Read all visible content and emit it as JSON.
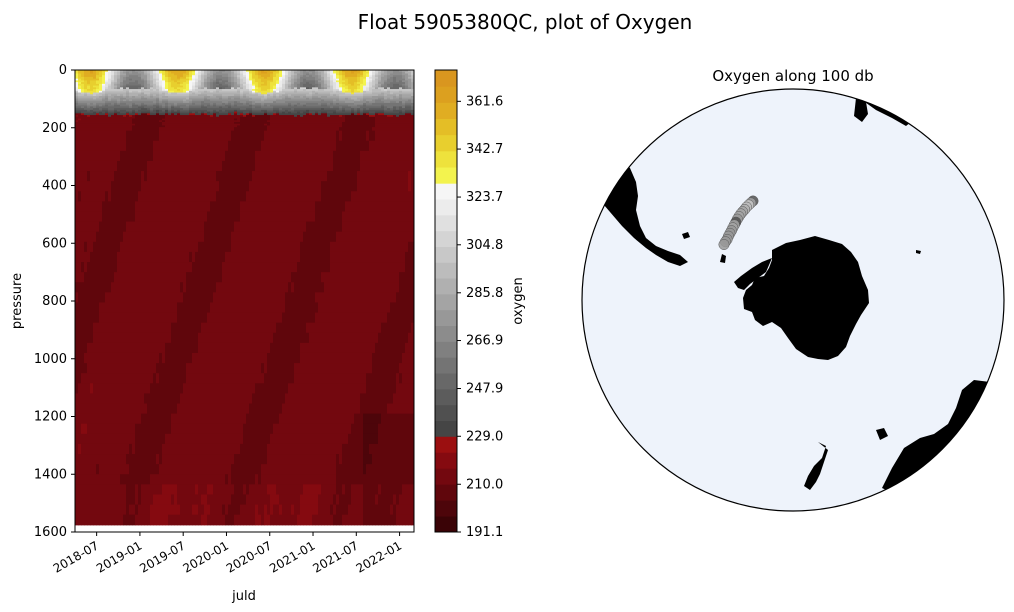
{
  "figure": {
    "suptitle": "Float 5905380QC, plot of Oxygen"
  },
  "chart_data": [
    {
      "type": "heatmap",
      "subtype": "filled-contour section",
      "title": "",
      "xlabel": "juld",
      "ylabel": "pressure",
      "x_ticks": [
        "2018-07",
        "2019-01",
        "2019-07",
        "2020-01",
        "2020-07",
        "2021-01",
        "2021-07",
        "2022-01"
      ],
      "x_range": [
        "2018-04",
        "2022-03"
      ],
      "y_ticks": [
        0,
        200,
        400,
        600,
        800,
        1000,
        1200,
        1400,
        1600
      ],
      "ylim": [
        1600,
        0
      ],
      "y_inverted": true,
      "description_of_field": {
        "surface_high_oxygen_depth_range": [
          0,
          60
        ],
        "transition_layer_depth_range": [
          60,
          150
        ],
        "deep_layer_depth_range": [
          150,
          1600
        ]
      },
      "colorbar": {
        "label": "oxygen",
        "ticks": [
          191.1,
          210.0,
          229.0,
          247.9,
          266.9,
          285.8,
          304.8,
          323.7,
          342.7,
          361.6
        ],
        "range": [
          191.1,
          374.0
        ],
        "colormap": [
          {
            "from": 191.1,
            "to": 229.0,
            "colors": [
              "#3a0306",
              "#4d050a",
              "#60060c",
              "#73080f",
              "#850a10",
              "#9b0f10"
            ]
          },
          {
            "from": 229.0,
            "to": 329.2,
            "colors": [
              "#454545",
              "#505050",
              "#5c5c5c",
              "#686868",
              "#747474",
              "#808080",
              "#8c8c8c",
              "#989898",
              "#a4a4a4",
              "#b0b0b0",
              "#bcbcbc",
              "#c8c8c8",
              "#d4d4d4",
              "#e0e0e0",
              "#ececec",
              "#f6f6f6"
            ]
          },
          {
            "from": 329.2,
            "to": 374.0,
            "colors": [
              "#f3f34e",
              "#eee23c",
              "#e8cf2e",
              "#e4be26",
              "#e0ad22",
              "#dca01f",
              "#d9961f"
            ]
          }
        ]
      }
    },
    {
      "type": "scatter",
      "subtype": "south-polar map",
      "title": "Oxygen along 100 db",
      "ocean_color": "#eef3fb",
      "land_color": "#000000",
      "track_points": [
        {
          "lon": -22.0,
          "lat": -56.6,
          "oxygen": 240.0
        },
        {
          "lon": -23.5,
          "lat": -56.9,
          "oxygen": 280.0
        },
        {
          "lon": -25.0,
          "lat": -57.2,
          "oxygen": 300.0
        },
        {
          "lon": -26.6,
          "lat": -57.5,
          "oxygen": 292.0
        },
        {
          "lon": -28.1,
          "lat": -57.9,
          "oxygen": 288.0
        },
        {
          "lon": -29.7,
          "lat": -58.2,
          "oxygen": 285.0
        },
        {
          "lon": -31.2,
          "lat": -58.5,
          "oxygen": 282.0
        },
        {
          "lon": -32.9,
          "lat": -58.9,
          "oxygen": 280.0
        },
        {
          "lon": -34.5,
          "lat": -59.3,
          "oxygen": 279.0
        },
        {
          "lon": -36.3,
          "lat": -59.8,
          "oxygen": 240.0
        },
        {
          "lon": -38.0,
          "lat": -60.2,
          "oxygen": 285.0
        },
        {
          "lon": -39.8,
          "lat": -60.6,
          "oxygen": 281.0
        },
        {
          "lon": -41.6,
          "lat": -61.0,
          "oxygen": 279.0
        },
        {
          "lon": -43.4,
          "lat": -61.3,
          "oxygen": 277.0
        },
        {
          "lon": -45.3,
          "lat": -61.6,
          "oxygen": 276.0
        },
        {
          "lon": -47.4,
          "lat": -62.0,
          "oxygen": 275.0
        },
        {
          "lon": -49.2,
          "lat": -62.1,
          "oxygen": 274.0
        },
        {
          "lon": -51.2,
          "lat": -62.3,
          "oxygen": 273.0
        }
      ]
    }
  ]
}
